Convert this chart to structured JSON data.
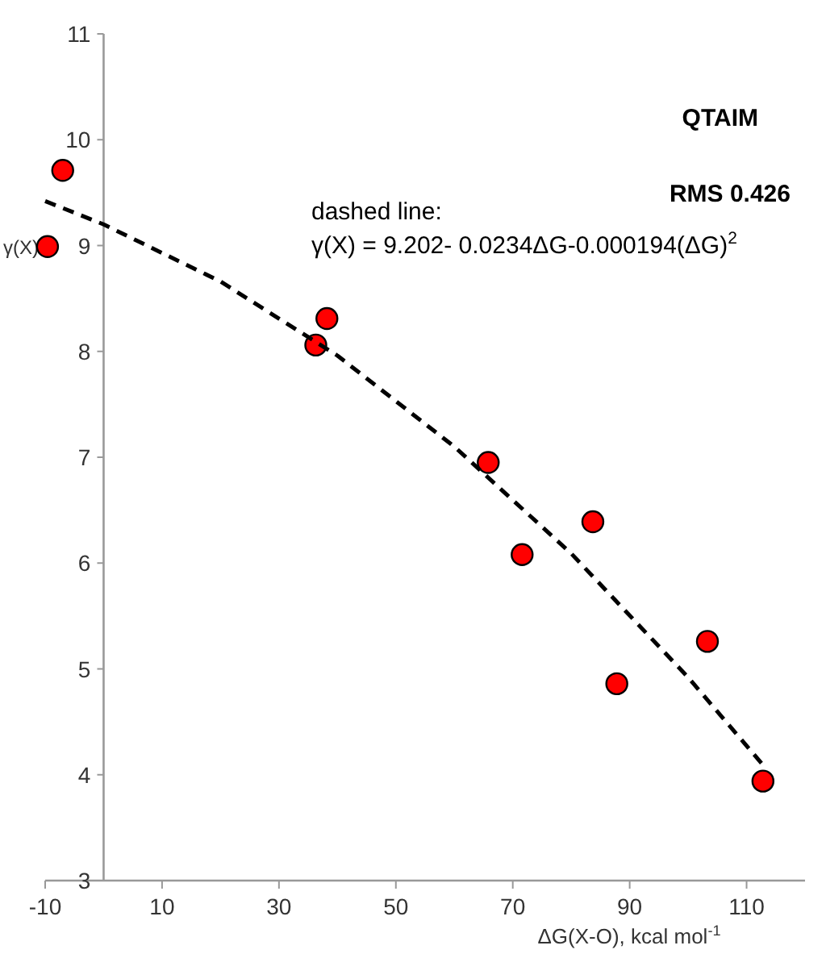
{
  "chart_data": {
    "type": "scatter",
    "xlabel": "ΔG(X-O), kcal mol$^{-1}$",
    "ylabel": "γ(X)",
    "annotations": [
      "QTAIM",
      "RMS 0.426",
      "dashed line:",
      "γ(X) = 9.202- 0.0234ΔG-0.000194(ΔG)$^{2}$"
    ],
    "xlim": [
      -10,
      120
    ],
    "xticks": [
      -10,
      10,
      30,
      50,
      70,
      90,
      110
    ],
    "ylim": [
      3,
      11
    ],
    "yticks": [
      3,
      4,
      5,
      6,
      7,
      8,
      9,
      10,
      11
    ],
    "grid": false,
    "series": [
      {
        "color": "#ff0000",
        "marker": "circle",
        "x": [
          -9.6,
          -7.0,
          36.3,
          38.2,
          65.8,
          71.6,
          83.7,
          87.8,
          103.3,
          112.8
        ],
        "values": [
          8.99,
          9.71,
          8.06,
          8.31,
          6.95,
          6.08,
          6.39,
          4.86,
          5.26,
          3.94
        ]
      },
      {
        "type": "line",
        "color": "#000000",
        "line_style": "dashed",
        "x": [
          -10,
          0,
          20,
          40,
          60,
          80,
          100,
          113
        ],
        "values": [
          9.42,
          9.2,
          8.66,
          7.96,
          7.1,
          6.09,
          4.92,
          4.08
        ]
      }
    ]
  }
}
